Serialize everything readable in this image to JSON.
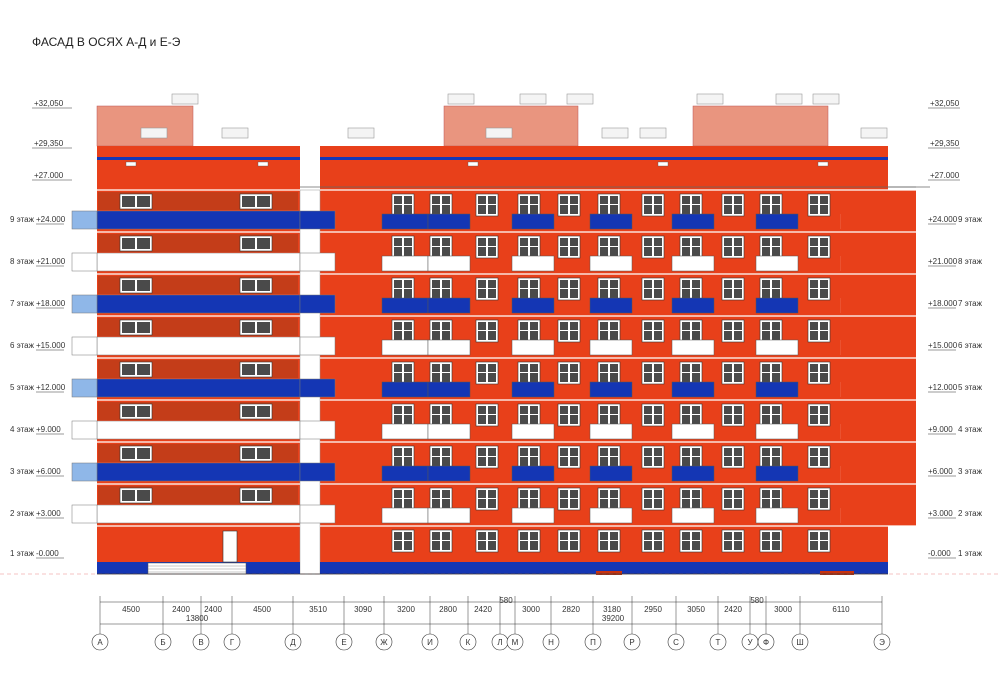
{
  "title": "ФАСАД В ОСЯХ А-Д и Е-Э",
  "colors": {
    "wall": "#e8401a",
    "wall_dark": "#c9320f",
    "blue_band": "#1436b4",
    "light_blue": "#8fb7e8",
    "roof_pink": "#e9957f",
    "shadow": "#9a3a18",
    "window_frame": "#ffffff",
    "window_glass": "#4a4a4a"
  },
  "top_levels": [
    {
      "label": "+32,050"
    },
    {
      "label": "+29,350"
    },
    {
      "label": "+27.000"
    }
  ],
  "top_levels_right": [
    {
      "label": "+32,050"
    },
    {
      "label": "+29,350"
    },
    {
      "label": "+27.000"
    }
  ],
  "floors": [
    {
      "floor": "9 этаж",
      "level_left": "+24.000",
      "level_right": "+24.000",
      "right_floor": "9 этаж"
    },
    {
      "floor": "8 этаж",
      "level_left": "+21.000",
      "level_right": "+21.000",
      "right_floor": "8 этаж"
    },
    {
      "floor": "7 этаж",
      "level_left": "+18.000",
      "level_right": "+18.000",
      "right_floor": "7 этаж"
    },
    {
      "floor": "6 этаж",
      "level_left": "+15.000",
      "level_right": "+15.000",
      "right_floor": "6 этаж"
    },
    {
      "floor": "5 этаж",
      "level_left": "+12.000",
      "level_right": "+12.000",
      "right_floor": "5 этаж"
    },
    {
      "floor": "4 этаж",
      "level_left": "+9.000",
      "level_right": "+9.000",
      "right_floor": "4 этаж"
    },
    {
      "floor": "3 этаж",
      "level_left": "+6.000",
      "level_right": "+6.000",
      "right_floor": "3 этаж"
    },
    {
      "floor": "2 этаж",
      "level_left": "+3.000",
      "level_right": "+3.000",
      "right_floor": "2 этаж"
    },
    {
      "floor": "1 этаж",
      "level_left": "-0.000",
      "level_right": "-0.000",
      "right_floor": "1 этаж"
    }
  ],
  "dimensions_row1": [
    "4500",
    "2400",
    "2400",
    "4500",
    "3510",
    "3090",
    "3200",
    "2800",
    "2420",
    "580",
    "3000",
    "2820",
    "3180",
    "2950",
    "3050",
    "2420",
    "580",
    "3000",
    "6110"
  ],
  "dimensions_totals": [
    "13800",
    "39200"
  ],
  "axes": [
    "А",
    "Б",
    "В",
    "Г",
    "Д",
    "Е",
    "Ж",
    "И",
    "К",
    "Л",
    "М",
    "Н",
    "П",
    "Р",
    "С",
    "Т",
    "У",
    "Ф",
    "Ш",
    "Э"
  ]
}
